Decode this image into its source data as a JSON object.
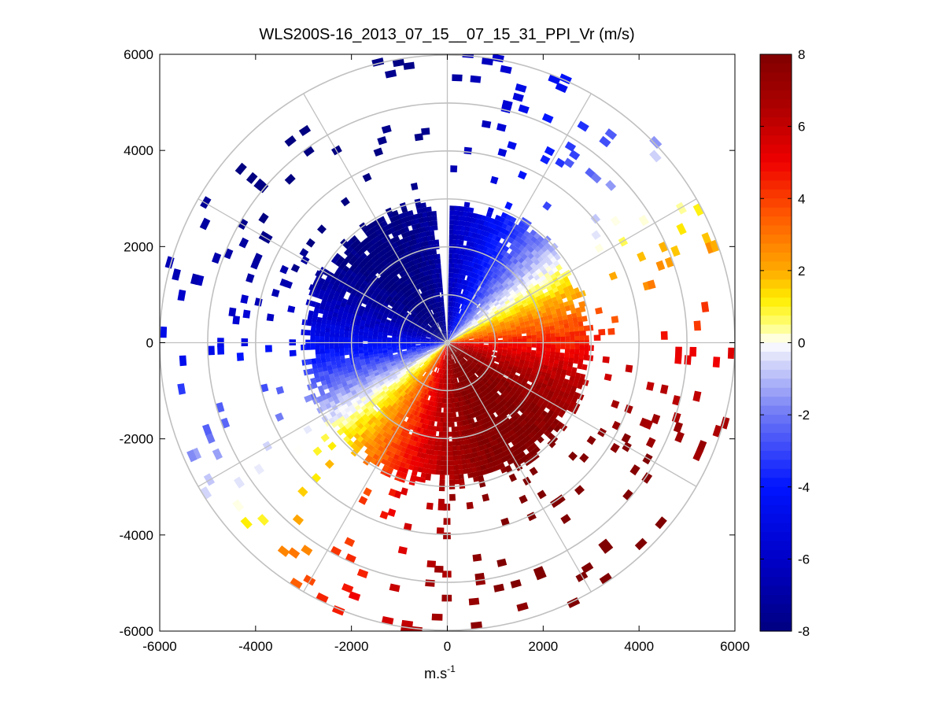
{
  "chart_data": {
    "type": "heatmap",
    "subtype": "polar-ppi",
    "title": "WLS200S-16_2013_07_15__07_15_31_PPI_Vr (m/s)",
    "xlabel_base": "m.s",
    "xlabel_exp": "-1",
    "ylabel": "",
    "xlim": [
      -6000,
      6000
    ],
    "ylim": [
      -6000,
      6000
    ],
    "xticks": [
      -6000,
      -4000,
      -2000,
      0,
      2000,
      4000,
      6000
    ],
    "yticks": [
      -6000,
      -4000,
      -2000,
      0,
      2000,
      4000,
      6000
    ],
    "xtick_labels": [
      "-6000",
      "-4000",
      "-2000",
      "0",
      "2000",
      "4000",
      "6000"
    ],
    "ytick_labels": [
      "-6000",
      "-4000",
      "-2000",
      "0",
      "2000",
      "4000",
      "6000"
    ],
    "polar_grid": {
      "rings": [
        1000,
        2000,
        3000,
        4000,
        5000,
        6000
      ],
      "spoke_every_deg": 30
    },
    "grid": true,
    "colorbar": {
      "clim": [
        -8,
        8
      ],
      "ticks": [
        -8,
        -6,
        -4,
        -2,
        0,
        2,
        4,
        6,
        8
      ],
      "tick_labels": [
        "-8",
        "-6",
        "-4",
        "-2",
        "0",
        "2",
        "4",
        "6",
        "8"
      ],
      "colormap": "blue-white-red",
      "placement": "right"
    },
    "field": {
      "description": "radial velocity, sign follows azimuth",
      "max_abs_velocity_ms": 8,
      "zero_line_bearing_deg": 55,
      "dense_region_max_range_m": 3000,
      "sparse_region_max_range_m": 6000,
      "range_gate_m": 100,
      "azimuth_step_deg": 2
    }
  }
}
